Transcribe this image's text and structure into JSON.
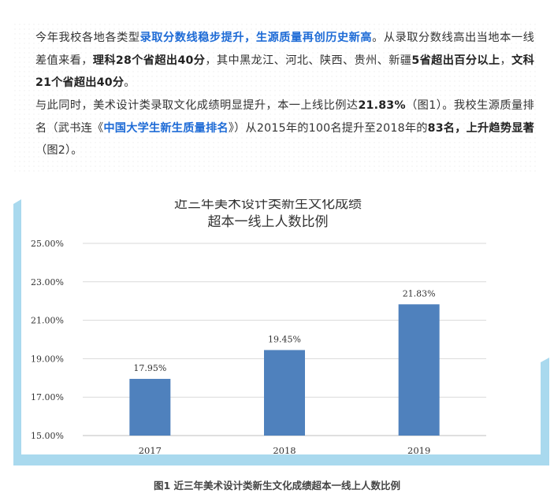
{
  "paragraph1": {
    "t1": "今年我校各地各类型",
    "t2": "录取分数线稳步提升，生源质量再创历史新高",
    "t3": "。从录取分数线高出当地本一线差值来看，",
    "t4": "理科28个省超出40分",
    "t5": "，其中黑龙江、河北、陕西、贵州、新疆",
    "t6": "5省超出百分以上",
    "t7": "，",
    "t8": "文科21个省超出40分",
    "t9": "。"
  },
  "paragraph2": {
    "t1": "与此同时，美术设计类录取文化成绩明显提升，本一上线比例达",
    "t2": "21.83%",
    "t3": "（图1）。我校生源质量排名（武书连《",
    "t4": "中国大学生新生质量排名",
    "t5": "》）从2015年的100名提升至2018年的",
    "t6": "83名，上升趋势显著",
    "t7": "（图2）。"
  },
  "colors": {
    "bar": "#4f81bd",
    "frame_accent": "#a9d9ee",
    "highlight_text": "#1e6bd6"
  },
  "chart_data": {
    "type": "bar",
    "title": [
      "近三年美术设计类新生文化成绩",
      "超本一线上人数比例"
    ],
    "categories": [
      "2017",
      "2018",
      "2019"
    ],
    "values": [
      17.95,
      19.45,
      21.83
    ],
    "data_labels": [
      "17.95%",
      "19.45%",
      "21.83%"
    ],
    "ylim": [
      15,
      25
    ],
    "yticks": [
      "15.00%",
      "17.00%",
      "19.00%",
      "21.00%",
      "23.00%",
      "25.00%"
    ],
    "ytick_values": [
      15,
      17,
      19,
      21,
      23,
      25
    ],
    "grid": true
  },
  "caption": "图1 近三年美术设计类新生文化成绩超本一线上人数比例"
}
